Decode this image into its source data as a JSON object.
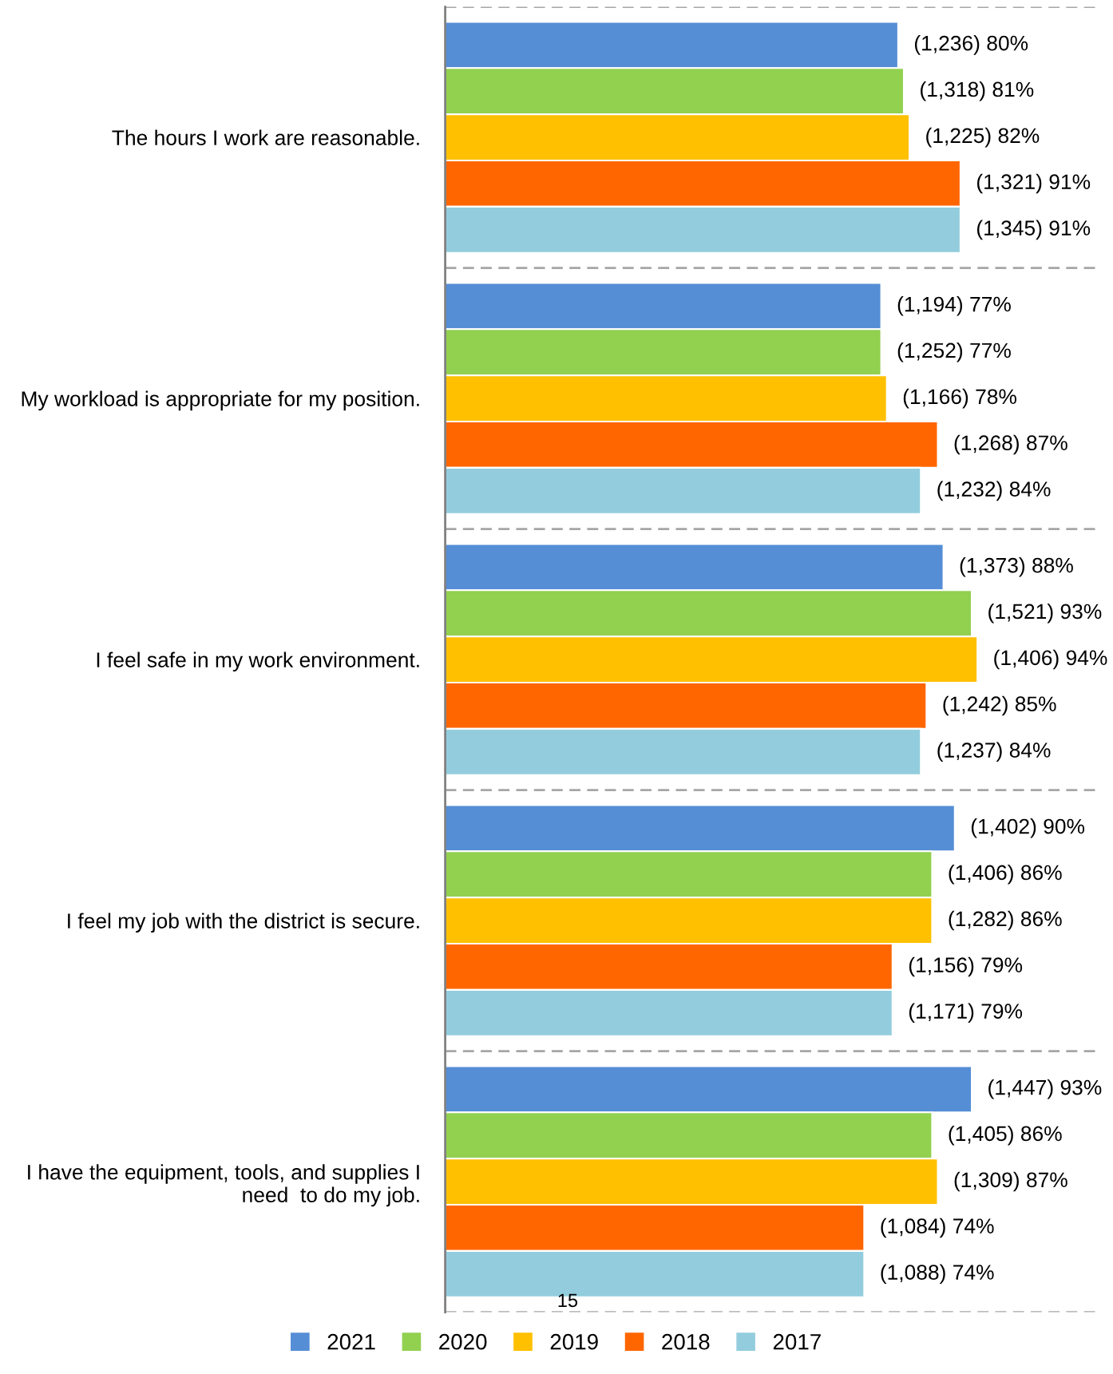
{
  "chart_data": {
    "type": "bar",
    "orientation": "horizontal",
    "categories": [
      "The hours I work are reasonable.",
      "My workload is appropriate for my position.",
      "I feel safe in my work environment.",
      "I feel my job with the district is secure.",
      "I have the equipment, tools, and supplies I\nneed  to do my job."
    ],
    "series": [
      {
        "name": "2021",
        "color": "#558ed5",
        "values": [
          80,
          77,
          88,
          90,
          93
        ],
        "value_labels": [
          "(1,236) 80%",
          "(1,194) 77%",
          "(1,373) 88%",
          "(1,402) 90%",
          "(1,447) 93%"
        ]
      },
      {
        "name": "2020",
        "color": "#92d050",
        "values": [
          81,
          77,
          93,
          86,
          86
        ],
        "value_labels": [
          "(1,318) 81%",
          "(1,252) 77%",
          "(1,521) 93%",
          "(1,406) 86%",
          "(1,405) 86%"
        ]
      },
      {
        "name": "2019",
        "color": "#ffc000",
        "values": [
          82,
          78,
          94,
          86,
          87
        ],
        "value_labels": [
          "(1,225) 82%",
          "(1,166) 78%",
          "(1,406) 94%",
          "(1,282) 86%",
          "(1,309) 87%"
        ]
      },
      {
        "name": "2018",
        "color": "#ff6600",
        "values": [
          91,
          87,
          85,
          79,
          74
        ],
        "value_labels": [
          "(1,321) 91%",
          "(1,268) 87%",
          "(1,242) 85%",
          "(1,156) 79%",
          "(1,084) 74%"
        ]
      },
      {
        "name": "2017",
        "color": "#93cddd",
        "values": [
          91,
          84,
          84,
          79,
          74
        ],
        "value_labels": [
          "(1,345) 91%",
          "(1,232) 84%",
          "(1,237) 84%",
          "(1,171) 79%",
          "(1,088) 74%"
        ]
      }
    ],
    "xlim": [
      0,
      115
    ],
    "tick_labels": "y",
    "grid": "y",
    "legend": "bottom",
    "annotations": [
      "15"
    ]
  }
}
